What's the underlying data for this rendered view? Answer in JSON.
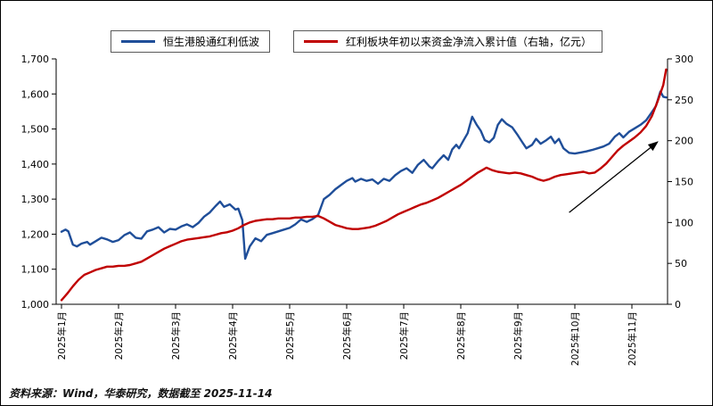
{
  "legend": [
    {
      "label": "恒生港股通红利低波",
      "color": "#1F4E99"
    },
    {
      "label": "红利板块年初以来资金净流入累计值（右轴，亿元）",
      "color": "#C00000"
    }
  ],
  "source_note": "资料来源：Wind，华泰研究，数据截至 2025-11-14",
  "chart_data": {
    "type": "line",
    "title": "",
    "x_tick_labels": [
      "2025年1月",
      "2025年2月",
      "2025年3月",
      "2025年4月",
      "2025年5月",
      "2025年6月",
      "2025年7月",
      "2025年8月",
      "2025年9月",
      "2025年10月",
      "2025年11月"
    ],
    "left_axis": {
      "min": 1000,
      "max": 1700,
      "tick_values": [
        1000,
        1100,
        1200,
        1300,
        1400,
        1500,
        1600,
        1700
      ],
      "tick_labels": [
        "1,000",
        "1,100",
        "1,200",
        "1,300",
        "1,400",
        "1,500",
        "1,600",
        "1,700"
      ]
    },
    "right_axis": {
      "min": 0,
      "max": 300,
      "tick_values": [
        0,
        50,
        100,
        150,
        200,
        250,
        300
      ],
      "tick_labels": [
        "0",
        "50",
        "100",
        "150",
        "200",
        "250",
        "300"
      ]
    },
    "grid": false,
    "legend_position": "top",
    "series": [
      {
        "name": "恒生港股通红利低波",
        "axis": "left",
        "color": "#1F4E99",
        "points": [
          [
            0,
            1207
          ],
          [
            0.07,
            1213
          ],
          [
            0.12,
            1208
          ],
          [
            0.2,
            1170
          ],
          [
            0.27,
            1165
          ],
          [
            0.35,
            1173
          ],
          [
            0.45,
            1178
          ],
          [
            0.5,
            1170
          ],
          [
            0.6,
            1180
          ],
          [
            0.7,
            1190
          ],
          [
            0.8,
            1185
          ],
          [
            0.9,
            1178
          ],
          [
            1.0,
            1183
          ],
          [
            1.1,
            1197
          ],
          [
            1.2,
            1205
          ],
          [
            1.3,
            1190
          ],
          [
            1.4,
            1187
          ],
          [
            1.5,
            1208
          ],
          [
            1.6,
            1213
          ],
          [
            1.7,
            1220
          ],
          [
            1.8,
            1205
          ],
          [
            1.9,
            1215
          ],
          [
            2.0,
            1213
          ],
          [
            2.1,
            1222
          ],
          [
            2.2,
            1228
          ],
          [
            2.3,
            1220
          ],
          [
            2.4,
            1232
          ],
          [
            2.5,
            1250
          ],
          [
            2.6,
            1262
          ],
          [
            2.7,
            1280
          ],
          [
            2.78,
            1293
          ],
          [
            2.85,
            1278
          ],
          [
            2.95,
            1285
          ],
          [
            3.05,
            1270
          ],
          [
            3.1,
            1273
          ],
          [
            3.17,
            1240
          ],
          [
            3.22,
            1130
          ],
          [
            3.3,
            1165
          ],
          [
            3.4,
            1188
          ],
          [
            3.5,
            1180
          ],
          [
            3.6,
            1198
          ],
          [
            3.7,
            1203
          ],
          [
            3.8,
            1208
          ],
          [
            3.9,
            1213
          ],
          [
            4.0,
            1218
          ],
          [
            4.1,
            1228
          ],
          [
            4.2,
            1242
          ],
          [
            4.3,
            1235
          ],
          [
            4.4,
            1243
          ],
          [
            4.5,
            1255
          ],
          [
            4.6,
            1300
          ],
          [
            4.7,
            1312
          ],
          [
            4.8,
            1328
          ],
          [
            4.9,
            1340
          ],
          [
            5.0,
            1352
          ],
          [
            5.1,
            1360
          ],
          [
            5.15,
            1350
          ],
          [
            5.25,
            1358
          ],
          [
            5.35,
            1352
          ],
          [
            5.45,
            1356
          ],
          [
            5.55,
            1344
          ],
          [
            5.65,
            1358
          ],
          [
            5.75,
            1352
          ],
          [
            5.85,
            1368
          ],
          [
            5.95,
            1380
          ],
          [
            6.05,
            1388
          ],
          [
            6.15,
            1375
          ],
          [
            6.25,
            1398
          ],
          [
            6.35,
            1412
          ],
          [
            6.45,
            1393
          ],
          [
            6.5,
            1388
          ],
          [
            6.6,
            1408
          ],
          [
            6.7,
            1425
          ],
          [
            6.78,
            1412
          ],
          [
            6.85,
            1442
          ],
          [
            6.92,
            1455
          ],
          [
            6.97,
            1445
          ],
          [
            7.05,
            1468
          ],
          [
            7.12,
            1488
          ],
          [
            7.2,
            1535
          ],
          [
            7.28,
            1512
          ],
          [
            7.35,
            1495
          ],
          [
            7.42,
            1468
          ],
          [
            7.5,
            1462
          ],
          [
            7.58,
            1475
          ],
          [
            7.65,
            1512
          ],
          [
            7.72,
            1528
          ],
          [
            7.8,
            1515
          ],
          [
            7.9,
            1505
          ],
          [
            8.0,
            1482
          ],
          [
            8.08,
            1462
          ],
          [
            8.15,
            1445
          ],
          [
            8.25,
            1455
          ],
          [
            8.32,
            1472
          ],
          [
            8.4,
            1458
          ],
          [
            8.5,
            1468
          ],
          [
            8.58,
            1478
          ],
          [
            8.65,
            1460
          ],
          [
            8.72,
            1472
          ],
          [
            8.8,
            1445
          ],
          [
            8.9,
            1432
          ],
          [
            9.0,
            1430
          ],
          [
            9.1,
            1433
          ],
          [
            9.2,
            1436
          ],
          [
            9.3,
            1440
          ],
          [
            9.4,
            1445
          ],
          [
            9.5,
            1450
          ],
          [
            9.6,
            1458
          ],
          [
            9.7,
            1478
          ],
          [
            9.78,
            1488
          ],
          [
            9.85,
            1476
          ],
          [
            9.95,
            1492
          ],
          [
            10.05,
            1502
          ],
          [
            10.15,
            1512
          ],
          [
            10.25,
            1525
          ],
          [
            10.35,
            1548
          ],
          [
            10.42,
            1565
          ],
          [
            10.5,
            1607
          ],
          [
            10.55,
            1592
          ],
          [
            10.6,
            1590
          ]
        ]
      },
      {
        "name": "红利板块年初以来资金净流入累计值（右轴，亿元）",
        "axis": "right",
        "color": "#C00000",
        "points": [
          [
            0,
            5
          ],
          [
            0.1,
            13
          ],
          [
            0.2,
            22
          ],
          [
            0.3,
            30
          ],
          [
            0.4,
            36
          ],
          [
            0.5,
            39
          ],
          [
            0.6,
            42
          ],
          [
            0.7,
            44
          ],
          [
            0.8,
            46
          ],
          [
            0.9,
            46
          ],
          [
            1.0,
            47
          ],
          [
            1.1,
            47
          ],
          [
            1.2,
            48
          ],
          [
            1.3,
            50
          ],
          [
            1.4,
            52
          ],
          [
            1.5,
            56
          ],
          [
            1.6,
            60
          ],
          [
            1.7,
            64
          ],
          [
            1.8,
            68
          ],
          [
            1.9,
            71
          ],
          [
            2.0,
            74
          ],
          [
            2.1,
            77
          ],
          [
            2.2,
            79
          ],
          [
            2.3,
            80
          ],
          [
            2.4,
            81
          ],
          [
            2.5,
            82
          ],
          [
            2.6,
            83
          ],
          [
            2.7,
            85
          ],
          [
            2.8,
            87
          ],
          [
            2.9,
            88
          ],
          [
            3.0,
            90
          ],
          [
            3.1,
            93
          ],
          [
            3.2,
            97
          ],
          [
            3.3,
            100
          ],
          [
            3.4,
            102
          ],
          [
            3.5,
            103
          ],
          [
            3.6,
            104
          ],
          [
            3.7,
            104
          ],
          [
            3.8,
            105
          ],
          [
            3.9,
            105
          ],
          [
            4.0,
            105
          ],
          [
            4.1,
            106
          ],
          [
            4.2,
            106
          ],
          [
            4.3,
            107
          ],
          [
            4.4,
            107
          ],
          [
            4.5,
            108
          ],
          [
            4.6,
            105
          ],
          [
            4.7,
            101
          ],
          [
            4.8,
            97
          ],
          [
            4.9,
            95
          ],
          [
            5.0,
            93
          ],
          [
            5.1,
            92
          ],
          [
            5.2,
            92
          ],
          [
            5.3,
            93
          ],
          [
            5.4,
            94
          ],
          [
            5.5,
            96
          ],
          [
            5.6,
            99
          ],
          [
            5.7,
            102
          ],
          [
            5.8,
            106
          ],
          [
            5.9,
            110
          ],
          [
            6.0,
            113
          ],
          [
            6.1,
            116
          ],
          [
            6.2,
            119
          ],
          [
            6.3,
            122
          ],
          [
            6.4,
            124
          ],
          [
            6.5,
            127
          ],
          [
            6.6,
            130
          ],
          [
            6.7,
            134
          ],
          [
            6.8,
            138
          ],
          [
            6.9,
            142
          ],
          [
            7.0,
            146
          ],
          [
            7.1,
            151
          ],
          [
            7.2,
            156
          ],
          [
            7.3,
            161
          ],
          [
            7.4,
            165
          ],
          [
            7.45,
            167
          ],
          [
            7.55,
            164
          ],
          [
            7.65,
            162
          ],
          [
            7.75,
            161
          ],
          [
            7.85,
            160
          ],
          [
            7.95,
            161
          ],
          [
            8.05,
            160
          ],
          [
            8.15,
            158
          ],
          [
            8.25,
            156
          ],
          [
            8.35,
            153
          ],
          [
            8.45,
            151
          ],
          [
            8.55,
            153
          ],
          [
            8.65,
            156
          ],
          [
            8.75,
            158
          ],
          [
            8.85,
            159
          ],
          [
            8.95,
            160
          ],
          [
            9.05,
            161
          ],
          [
            9.15,
            162
          ],
          [
            9.25,
            160
          ],
          [
            9.35,
            161
          ],
          [
            9.45,
            166
          ],
          [
            9.55,
            172
          ],
          [
            9.65,
            180
          ],
          [
            9.75,
            188
          ],
          [
            9.85,
            194
          ],
          [
            9.95,
            199
          ],
          [
            10.05,
            204
          ],
          [
            10.15,
            210
          ],
          [
            10.25,
            218
          ],
          [
            10.35,
            230
          ],
          [
            10.45,
            248
          ],
          [
            10.55,
            268
          ],
          [
            10.6,
            287
          ]
        ]
      }
    ],
    "annotation_arrow": {
      "axis": "left",
      "from": [
        8.9,
        1262
      ],
      "to": [
        10.45,
        1463
      ]
    }
  }
}
